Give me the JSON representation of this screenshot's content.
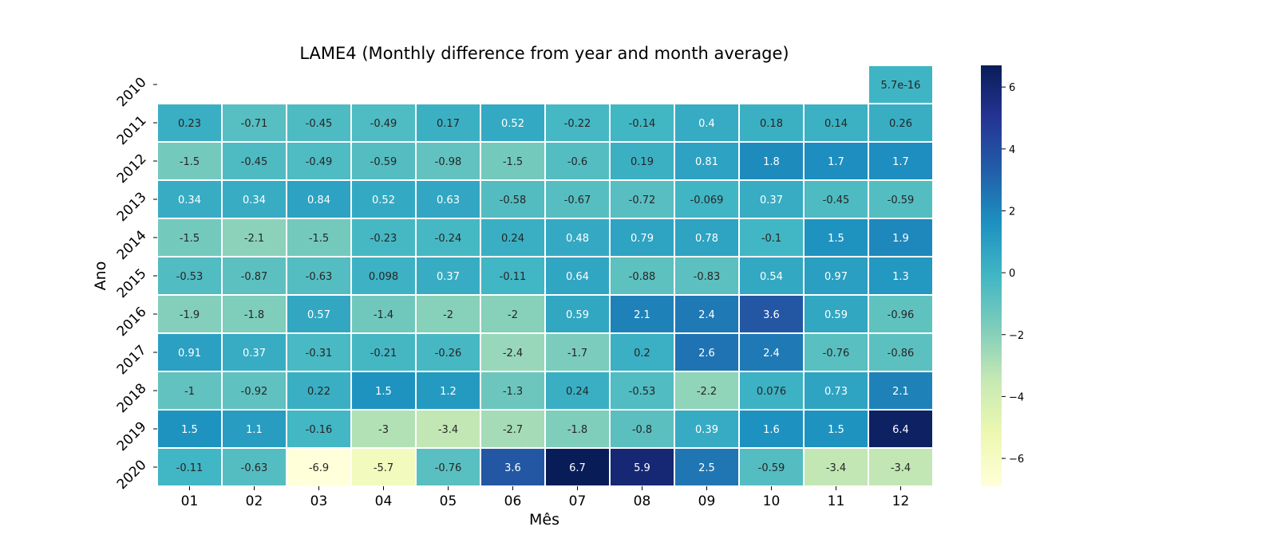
{
  "chart_data": {
    "type": "heatmap",
    "title": "LAME4 (Monthly difference from year and month average)",
    "xlabel": "Mês",
    "ylabel": "Ano",
    "columns": [
      "01",
      "02",
      "03",
      "04",
      "05",
      "06",
      "07",
      "08",
      "09",
      "10",
      "11",
      "12"
    ],
    "rows": [
      "2010",
      "2011",
      "2012",
      "2013",
      "2014",
      "2015",
      "2016",
      "2017",
      "2018",
      "2019",
      "2020"
    ],
    "values": [
      [
        null,
        null,
        null,
        null,
        null,
        null,
        null,
        null,
        null,
        null,
        null,
        5.7e-16
      ],
      [
        0.23,
        -0.71,
        -0.45,
        -0.49,
        0.17,
        0.52,
        -0.22,
        -0.14,
        0.4,
        0.18,
        0.14,
        0.26
      ],
      [
        -1.5,
        -0.45,
        -0.49,
        -0.59,
        -0.98,
        -1.5,
        -0.6,
        0.19,
        0.81,
        1.8,
        1.7,
        1.7
      ],
      [
        0.34,
        0.34,
        0.84,
        0.52,
        0.63,
        -0.58,
        -0.67,
        -0.72,
        -0.069,
        0.37,
        -0.45,
        -0.59
      ],
      [
        -1.5,
        -2.1,
        -1.5,
        -0.23,
        -0.24,
        0.24,
        0.48,
        0.79,
        0.78,
        -0.1,
        1.5,
        1.9
      ],
      [
        -0.53,
        -0.87,
        -0.63,
        0.098,
        0.37,
        -0.11,
        0.64,
        -0.88,
        -0.83,
        0.54,
        0.97,
        1.3
      ],
      [
        -1.9,
        -1.8,
        0.57,
        -1.4,
        -2,
        -2,
        0.59,
        2.1,
        2.4,
        3.6,
        0.59,
        -0.96
      ],
      [
        0.91,
        0.37,
        -0.31,
        -0.21,
        -0.26,
        -2.4,
        -1.7,
        0.2,
        2.6,
        2.4,
        -0.76,
        -0.86
      ],
      [
        -1,
        -0.92,
        0.22,
        1.5,
        1.2,
        -1.3,
        0.24,
        -0.53,
        -2.2,
        0.076,
        0.73,
        2.1
      ],
      [
        1.5,
        1.1,
        -0.16,
        -3,
        -3.4,
        -2.7,
        -1.8,
        -0.8,
        0.39,
        1.6,
        1.5,
        6.4
      ],
      [
        -0.11,
        -0.63,
        -6.9,
        -5.7,
        -0.76,
        3.6,
        6.7,
        5.9,
        2.5,
        -0.59,
        -3.4,
        -3.4
      ]
    ],
    "labels": [
      [
        null,
        null,
        null,
        null,
        null,
        null,
        null,
        null,
        null,
        null,
        null,
        "5.7e-16"
      ],
      [
        "0.23",
        "-0.71",
        "-0.45",
        "-0.49",
        "0.17",
        "0.52",
        "-0.22",
        "-0.14",
        "0.4",
        "0.18",
        "0.14",
        "0.26"
      ],
      [
        "-1.5",
        "-0.45",
        "-0.49",
        "-0.59",
        "-0.98",
        "-1.5",
        "-0.6",
        "0.19",
        "0.81",
        "1.8",
        "1.7",
        "1.7"
      ],
      [
        "0.34",
        "0.34",
        "0.84",
        "0.52",
        "0.63",
        "-0.58",
        "-0.67",
        "-0.72",
        "-0.069",
        "0.37",
        "-0.45",
        "-0.59"
      ],
      [
        "-1.5",
        "-2.1",
        "-1.5",
        "-0.23",
        "-0.24",
        "0.24",
        "0.48",
        "0.79",
        "0.78",
        "-0.1",
        "1.5",
        "1.9"
      ],
      [
        "-0.53",
        "-0.87",
        "-0.63",
        "0.098",
        "0.37",
        "-0.11",
        "0.64",
        "-0.88",
        "-0.83",
        "0.54",
        "0.97",
        "1.3"
      ],
      [
        "-1.9",
        "-1.8",
        "0.57",
        "-1.4",
        "-2",
        "-2",
        "0.59",
        "2.1",
        "2.4",
        "3.6",
        "0.59",
        "-0.96"
      ],
      [
        "0.91",
        "0.37",
        "-0.31",
        "-0.21",
        "-0.26",
        "-2.4",
        "-1.7",
        "0.2",
        "2.6",
        "2.4",
        "-0.76",
        "-0.86"
      ],
      [
        "-1",
        "-0.92",
        "0.22",
        "1.5",
        "1.2",
        "-1.3",
        "0.24",
        "-0.53",
        "-2.2",
        "0.076",
        "0.73",
        "2.1"
      ],
      [
        "1.5",
        "1.1",
        "-0.16",
        "-3",
        "-3.4",
        "-2.7",
        "-1.8",
        "-0.8",
        "0.39",
        "1.6",
        "1.5",
        "6.4"
      ],
      [
        "-0.11",
        "-0.63",
        "-6.9",
        "-5.7",
        "-0.76",
        "3.6",
        "6.7",
        "5.9",
        "2.5",
        "-0.59",
        "-3.4",
        "-3.4"
      ]
    ],
    "colorbar": {
      "vmin": -6.9,
      "vmax": 6.7,
      "ticks": [
        6,
        4,
        2,
        0,
        -2,
        -4,
        -6
      ],
      "tick_labels": [
        "6",
        "4",
        "2",
        "0",
        "−2",
        "−4",
        "−6"
      ],
      "colormap": "YlGnBu",
      "colormap_stops": [
        "#ffffd9",
        "#edf8b1",
        "#c7e9b4",
        "#7fcdbb",
        "#41b6c4",
        "#1d91c0",
        "#225ea8",
        "#253494",
        "#081d58"
      ]
    },
    "cell_text_colors": {
      "light_bg": "#262626",
      "dark_bg": "#ffffff"
    },
    "cell_border_color": "#ffffff",
    "grid": false,
    "legend": "colorbar-right"
  }
}
